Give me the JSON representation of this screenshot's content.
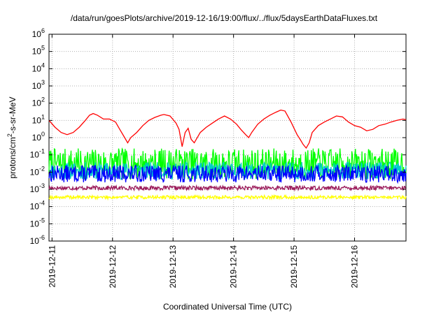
{
  "chart_data": {
    "type": "line",
    "title": "/data/run/goesPlots/archive/2019-12-16/19:00/flux/../flux/5daysEarthDataFluxes.txt",
    "xlabel": "Coordinated Universal Time (UTC)",
    "ylabel_main": "protons/cm",
    "ylabel_sup": "2",
    "ylabel_tail": "-s-sr-MeV",
    "y_scale": "log",
    "ylim": [
      1e-06,
      1000000.0
    ],
    "y_ticks": [
      {
        "base": "10",
        "exp": "-6",
        "value": 1e-06
      },
      {
        "base": "10",
        "exp": "-5",
        "value": 1e-05
      },
      {
        "base": "10",
        "exp": "-4",
        "value": 0.0001
      },
      {
        "base": "10",
        "exp": "-3",
        "value": 0.001
      },
      {
        "base": "10",
        "exp": "-2",
        "value": 0.01
      },
      {
        "base": "10",
        "exp": "-1",
        "value": 0.1
      },
      {
        "base": "10",
        "exp": "0",
        "value": 1
      },
      {
        "base": "10",
        "exp": "1",
        "value": 10
      },
      {
        "base": "10",
        "exp": "2",
        "value": 100
      },
      {
        "base": "10",
        "exp": "3",
        "value": 1000
      },
      {
        "base": "10",
        "exp": "4",
        "value": 10000
      },
      {
        "base": "10",
        "exp": "5",
        "value": 100000
      },
      {
        "base": "10",
        "exp": "6",
        "value": 1000000
      }
    ],
    "x_day_range": [
      10.95,
      16.85
    ],
    "x_ticks": [
      {
        "label": "2019-12-11",
        "value": 11
      },
      {
        "label": "2019-12-12",
        "value": 12
      },
      {
        "label": "2019-12-13",
        "value": 13
      },
      {
        "label": "2019-12-14",
        "value": 14
      },
      {
        "label": "2019-12-15",
        "value": 15
      },
      {
        "label": "2019-12-16",
        "value": 16
      }
    ],
    "grid": true,
    "legend": "none",
    "series": [
      {
        "color": "#ff0000",
        "points": [
          [
            10.95,
            10
          ],
          [
            11.05,
            4
          ],
          [
            11.15,
            2
          ],
          [
            11.25,
            1.5
          ],
          [
            11.35,
            2
          ],
          [
            11.45,
            4
          ],
          [
            11.55,
            10
          ],
          [
            11.62,
            20
          ],
          [
            11.68,
            25
          ],
          [
            11.75,
            20
          ],
          [
            11.85,
            12
          ],
          [
            11.95,
            12
          ],
          [
            12.05,
            8
          ],
          [
            12.12,
            3
          ],
          [
            12.2,
            1
          ],
          [
            12.25,
            0.5
          ],
          [
            12.3,
            1
          ],
          [
            12.4,
            2
          ],
          [
            12.5,
            5
          ],
          [
            12.6,
            10
          ],
          [
            12.7,
            15
          ],
          [
            12.8,
            20
          ],
          [
            12.85,
            22
          ],
          [
            12.95,
            18
          ],
          [
            13.05,
            7
          ],
          [
            13.1,
            3
          ],
          [
            13.15,
            0.3
          ],
          [
            13.2,
            2
          ],
          [
            13.25,
            3.5
          ],
          [
            13.3,
            0.8
          ],
          [
            13.35,
            0.5
          ],
          [
            13.45,
            2
          ],
          [
            13.55,
            4
          ],
          [
            13.65,
            7
          ],
          [
            13.75,
            12
          ],
          [
            13.85,
            18
          ],
          [
            13.95,
            12
          ],
          [
            14.05,
            6
          ],
          [
            14.12,
            3
          ],
          [
            14.2,
            1.5
          ],
          [
            14.25,
            1
          ],
          [
            14.3,
            2
          ],
          [
            14.4,
            6
          ],
          [
            14.5,
            12
          ],
          [
            14.6,
            20
          ],
          [
            14.7,
            30
          ],
          [
            14.78,
            40
          ],
          [
            14.85,
            35
          ],
          [
            14.95,
            8
          ],
          [
            15.05,
            1.5
          ],
          [
            15.1,
            0.8
          ],
          [
            15.15,
            0.4
          ],
          [
            15.2,
            0.25
          ],
          [
            15.25,
            0.5
          ],
          [
            15.3,
            2
          ],
          [
            15.4,
            5
          ],
          [
            15.5,
            8
          ],
          [
            15.6,
            12
          ],
          [
            15.7,
            18
          ],
          [
            15.8,
            16
          ],
          [
            15.9,
            8
          ],
          [
            16.0,
            5
          ],
          [
            16.1,
            4
          ],
          [
            16.2,
            2.5
          ],
          [
            16.3,
            3
          ],
          [
            16.4,
            5
          ],
          [
            16.5,
            6
          ],
          [
            16.6,
            8
          ],
          [
            16.7,
            10
          ],
          [
            16.8,
            12
          ],
          [
            16.85,
            11
          ]
        ]
      },
      {
        "color": "#00ff00",
        "base": 0.03,
        "spread": 0.9,
        "seed": 7
      },
      {
        "color": "#00cccc",
        "base": 0.012,
        "spread": 0.5,
        "seed": 11
      },
      {
        "color": "#0000ff",
        "base": 0.008,
        "spread": 0.5,
        "seed": 13
      },
      {
        "color": "#9b1b5a",
        "base": 0.0012,
        "spread": 0.12,
        "seed": 17
      },
      {
        "color": "#ffff00",
        "base": 0.00035,
        "spread": 0.1,
        "seed": 19
      }
    ]
  }
}
